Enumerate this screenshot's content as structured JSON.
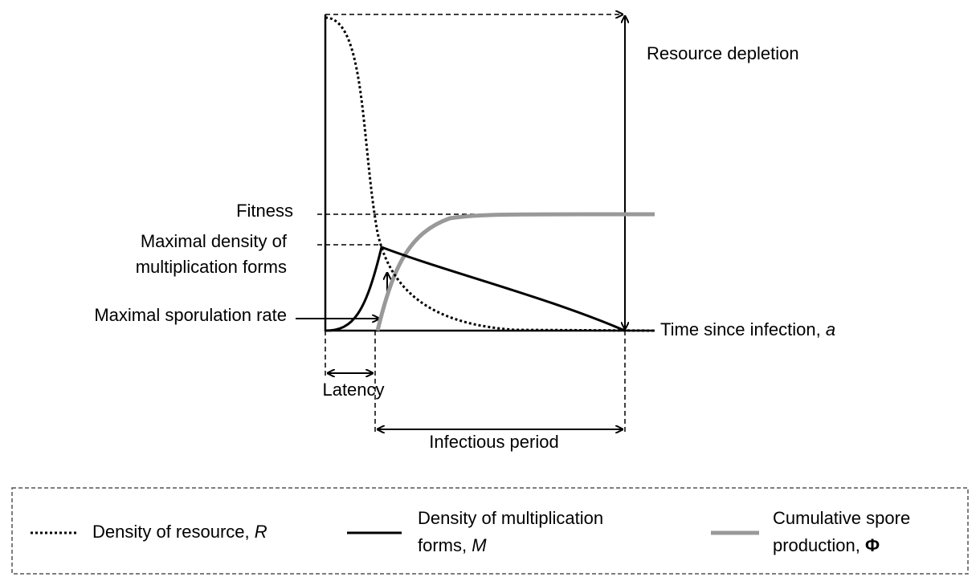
{
  "labels": {
    "resource_depletion": "Resource depletion",
    "fitness": "Fitness",
    "max_density_1": "Maximal density of",
    "max_density_2": "multiplication forms",
    "max_sporulation": "Maximal sporulation rate",
    "time_axis": "Time since infection, ",
    "time_var": "a",
    "latency": "Latency",
    "infectious_period": "Infectious period"
  },
  "legend": [
    {
      "line1": "Density of resource, ",
      "var": "R"
    },
    {
      "line1": "Density of multiplication",
      "line2": "forms, ",
      "var": "M"
    },
    {
      "line1": "Cumulative spore",
      "line2": "production, ",
      "var": "Φ"
    }
  ]
}
